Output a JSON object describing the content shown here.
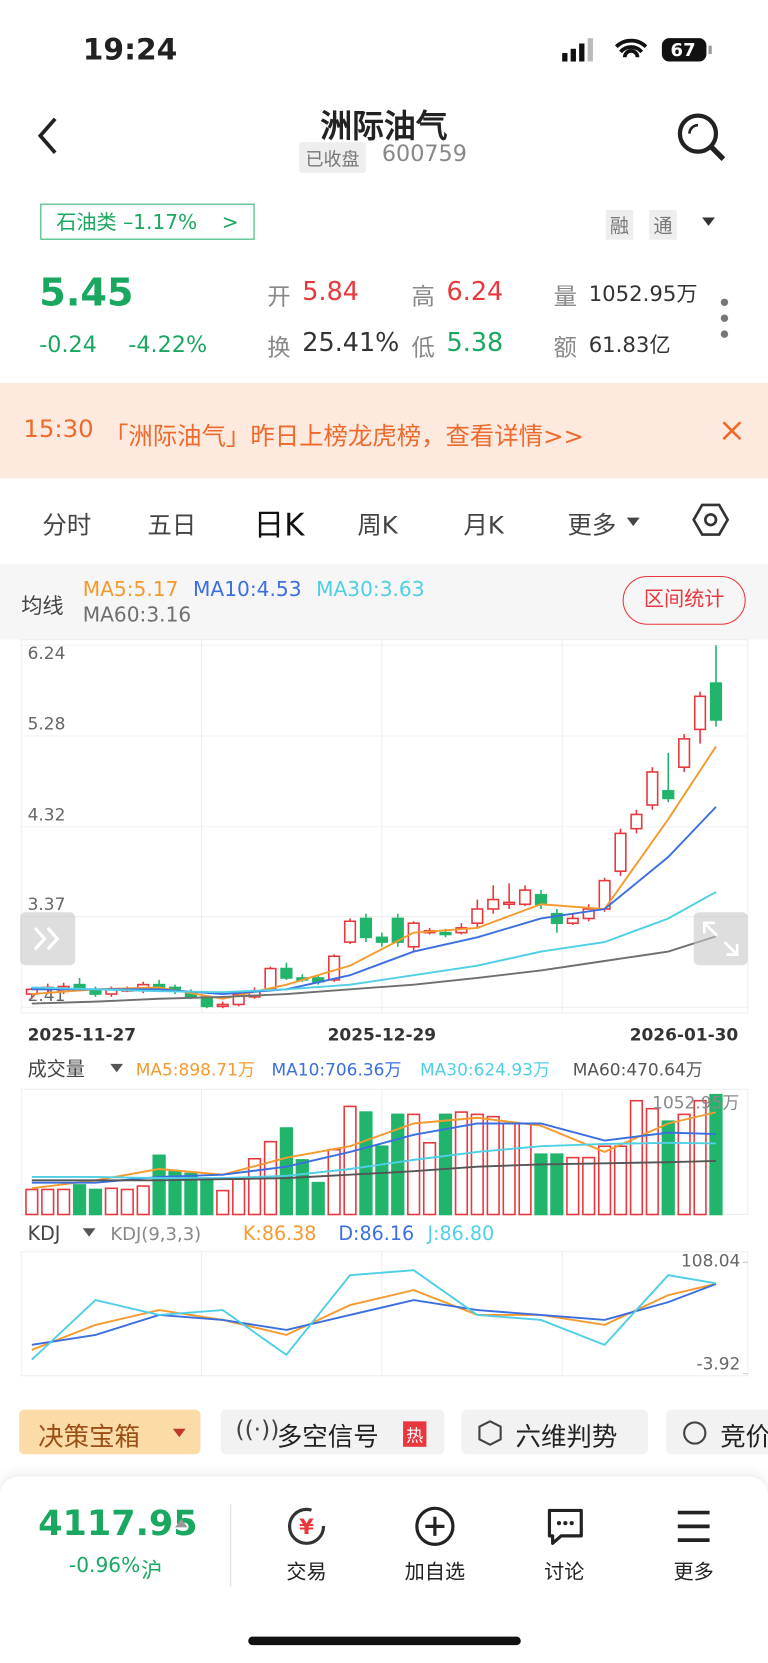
{
  "status": {
    "time": "19:24",
    "battery": "67"
  },
  "header": {
    "title": "洲际油气",
    "state": "已收盘",
    "code": "600759"
  },
  "sector": "石油类 –1.17%",
  "badges": [
    "融",
    "通"
  ],
  "quote": {
    "price": "5.45",
    "change": "-0.24",
    "change_pct": "-4.22%",
    "fields": [
      {
        "label": "开",
        "value": "5.84"
      },
      {
        "label": "高",
        "value": "6.24"
      },
      {
        "label": "量",
        "value": "1052.95万"
      },
      {
        "label": "换",
        "value": "25.41%"
      },
      {
        "label": "低",
        "value": "5.38"
      },
      {
        "label": "额",
        "value": "61.83亿"
      }
    ]
  },
  "banner": {
    "time": "15:30",
    "text": "「洲际油气」昨日上榜龙虎榜，查看详情>>"
  },
  "tabs": [
    "分时",
    "五日",
    "日K",
    "周K",
    "月K",
    "更多"
  ],
  "chart_data": [
    {
      "type": "candlestick",
      "legend_title": "均线",
      "button": "区间统计",
      "categories": [
        "2025-11-27",
        null,
        null,
        null,
        null,
        null,
        null,
        null,
        null,
        null,
        null,
        null,
        null,
        null,
        null,
        null,
        null,
        null,
        null,
        null,
        null,
        null,
        "2025-12-29",
        null,
        null,
        null,
        null,
        null,
        null,
        null,
        null,
        null,
        null,
        null,
        null,
        null,
        null,
        null,
        null,
        null,
        null,
        null,
        null,
        "2026-01-30"
      ],
      "open": [
        2.55,
        2.6,
        2.58,
        2.65,
        2.6,
        2.55,
        2.6,
        2.6,
        2.65,
        2.62,
        2.57,
        2.52,
        2.42,
        2.44,
        2.52,
        2.6,
        2.82,
        2.72,
        2.72,
        2.7,
        3.1,
        3.35,
        3.15,
        3.35,
        3.05,
        3.2,
        3.2,
        3.2,
        3.3,
        3.45,
        3.5,
        3.5,
        3.6,
        3.4,
        3.3,
        3.35,
        3.45,
        3.85,
        4.3,
        4.55,
        4.7,
        4.95,
        5.35,
        5.84
      ],
      "close": [
        2.6,
        2.62,
        2.63,
        2.6,
        2.55,
        2.6,
        2.6,
        2.65,
        2.62,
        2.58,
        2.52,
        2.42,
        2.44,
        2.55,
        2.58,
        2.82,
        2.72,
        2.7,
        2.68,
        2.95,
        3.32,
        3.15,
        3.1,
        3.1,
        3.3,
        3.22,
        3.18,
        3.25,
        3.45,
        3.55,
        3.52,
        3.65,
        3.5,
        3.3,
        3.35,
        3.45,
        3.75,
        4.25,
        4.45,
        4.9,
        4.62,
        5.25,
        5.7,
        5.45
      ],
      "high": [
        2.62,
        2.66,
        2.67,
        2.72,
        2.63,
        2.63,
        2.63,
        2.68,
        2.7,
        2.65,
        2.6,
        2.54,
        2.47,
        2.58,
        2.62,
        2.84,
        2.88,
        2.76,
        2.74,
        2.97,
        3.35,
        3.4,
        3.2,
        3.4,
        3.32,
        3.25,
        3.24,
        3.3,
        3.55,
        3.7,
        3.72,
        3.7,
        3.65,
        3.45,
        3.4,
        3.5,
        3.78,
        4.3,
        4.5,
        4.95,
        5.1,
        5.3,
        5.75,
        6.24
      ],
      "low": [
        2.5,
        2.55,
        2.55,
        2.58,
        2.52,
        2.52,
        2.57,
        2.56,
        2.6,
        2.55,
        2.5,
        2.4,
        2.4,
        2.42,
        2.5,
        2.58,
        2.7,
        2.68,
        2.65,
        2.68,
        3.08,
        3.1,
        3.05,
        3.05,
        3.0,
        3.18,
        3.15,
        3.18,
        3.25,
        3.4,
        3.45,
        3.48,
        3.45,
        3.2,
        3.28,
        3.32,
        3.42,
        3.8,
        4.25,
        4.5,
        4.58,
        4.9,
        5.2,
        5.38
      ],
      "ylim": [
        2.35,
        6.3
      ],
      "yticks": [
        2.41,
        3.37,
        4.32,
        5.28,
        6.24
      ],
      "up_color": "#e8383d",
      "down_color": "#20b56b",
      "series": [
        {
          "label": "MA5:5.17",
          "color": "#f59a2e",
          "x": [
            0,
            4,
            8,
            12,
            16,
            20,
            24,
            28,
            32,
            36,
            40,
            43
          ],
          "values": [
            2.55,
            2.6,
            2.62,
            2.5,
            2.65,
            2.85,
            3.2,
            3.25,
            3.5,
            3.45,
            4.4,
            5.17
          ]
        },
        {
          "label": "MA10:4.53",
          "color": "#3b6fe0",
          "x": [
            0,
            4,
            8,
            12,
            16,
            20,
            24,
            28,
            32,
            36,
            40,
            43
          ],
          "values": [
            2.6,
            2.6,
            2.6,
            2.55,
            2.6,
            2.75,
            3.0,
            3.15,
            3.35,
            3.45,
            4.0,
            4.53
          ]
        },
        {
          "label": "MA30:3.63",
          "color": "#4fcfe6",
          "x": [
            0,
            4,
            8,
            12,
            16,
            20,
            24,
            28,
            32,
            36,
            40,
            43
          ],
          "values": [
            2.62,
            2.6,
            2.58,
            2.57,
            2.6,
            2.65,
            2.75,
            2.85,
            3.0,
            3.1,
            3.35,
            3.63
          ]
        },
        {
          "label": "MA60:3.16",
          "color": "#6f6f6f",
          "x": [
            0,
            4,
            8,
            12,
            16,
            20,
            24,
            28,
            32,
            36,
            40,
            43
          ],
          "values": [
            2.45,
            2.47,
            2.5,
            2.52,
            2.55,
            2.6,
            2.65,
            2.72,
            2.8,
            2.9,
            3.0,
            3.16
          ]
        }
      ]
    },
    {
      "type": "bar",
      "title": "成交量",
      "max_label": "1052.95万",
      "values": [
        220,
        220,
        220,
        260,
        220,
        230,
        220,
        250,
        520,
        380,
        360,
        300,
        210,
        310,
        490,
        640,
        760,
        480,
        280,
        570,
        950,
        900,
        600,
        880,
        880,
        630,
        880,
        900,
        880,
        860,
        800,
        800,
        530,
        530,
        500,
        500,
        600,
        600,
        1000,
        930,
        820,
        880,
        1000,
        1052.95
      ],
      "ylim": [
        0,
        1100
      ],
      "series": [
        {
          "label": "MA5:898.71万",
          "color": "#f59a2e",
          "x": [
            0,
            4,
            8,
            12,
            16,
            20,
            24,
            28,
            32,
            36,
            40,
            43
          ],
          "values": [
            230,
            300,
            400,
            350,
            500,
            600,
            800,
            850,
            780,
            550,
            800,
            898.71
          ]
        },
        {
          "label": "MA10:706.36万",
          "color": "#3b6fe0",
          "x": [
            0,
            4,
            8,
            12,
            16,
            20,
            24,
            28,
            32,
            36,
            40,
            43
          ],
          "values": [
            280,
            280,
            330,
            350,
            420,
            550,
            700,
            800,
            800,
            650,
            720,
            706.36
          ]
        },
        {
          "label": "MA30:624.93万",
          "color": "#4fcfe6",
          "x": [
            0,
            4,
            8,
            12,
            16,
            20,
            24,
            28,
            32,
            36,
            40,
            43
          ],
          "values": [
            330,
            330,
            320,
            320,
            340,
            400,
            480,
            550,
            600,
            620,
            630,
            624.93
          ]
        },
        {
          "label": "MA60:470.64万",
          "color": "#555555",
          "x": [
            0,
            4,
            8,
            12,
            16,
            20,
            24,
            28,
            32,
            36,
            40,
            43
          ],
          "values": [
            300,
            300,
            300,
            310,
            320,
            350,
            380,
            420,
            440,
            450,
            460,
            470.64
          ]
        }
      ]
    },
    {
      "type": "line",
      "title": "KDJ",
      "params": "KDJ(9,3,3)",
      "ylim": [
        -3.92,
        108.04
      ],
      "yticks": [
        -3.92,
        108.04
      ],
      "series": [
        {
          "label": "K:86.38",
          "color": "#f59a2e",
          "x": [
            0,
            4,
            8,
            12,
            16,
            20,
            24,
            28,
            32,
            36,
            40,
            43
          ],
          "values": [
            20,
            45,
            60,
            50,
            35,
            65,
            80,
            55,
            55,
            45,
            75,
            86.38
          ]
        },
        {
          "label": "D:86.16",
          "color": "#3b6fe0",
          "x": [
            0,
            4,
            8,
            12,
            16,
            20,
            24,
            28,
            32,
            36,
            40,
            43
          ],
          "values": [
            25,
            35,
            55,
            50,
            40,
            55,
            70,
            60,
            55,
            50,
            68,
            86.16
          ]
        },
        {
          "label": "J:86.80",
          "color": "#4fcfe6",
          "x": [
            0,
            4,
            8,
            12,
            16,
            20,
            24,
            28,
            32,
            36,
            40,
            43
          ],
          "values": [
            10,
            70,
            55,
            60,
            15,
            95,
            100,
            55,
            50,
            25,
            95,
            86.8
          ]
        }
      ]
    }
  ],
  "tools": [
    "决策宝箱",
    "多空信号",
    "六维判势",
    "竞价"
  ],
  "hot": "热",
  "footer": {
    "index": "4117.95",
    "index_change": "-0.96%",
    "market": "沪",
    "nav": [
      "交易",
      "加自选",
      "讨论",
      "更多"
    ]
  }
}
